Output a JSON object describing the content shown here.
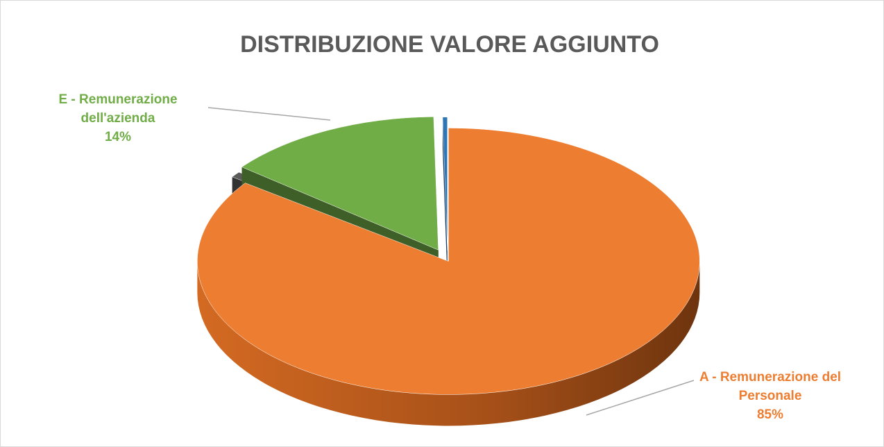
{
  "chart_data": {
    "type": "pie3d",
    "title": "DISTRIBUZIONE VALORE AGGIUNTO",
    "categories": [
      "A - Remunerazione del Personale",
      null,
      "E - Remunerazione dell'azienda",
      null
    ],
    "values": [
      85,
      0.7,
      14,
      0.3
    ],
    "value_labels": [
      "85%",
      null,
      "14%",
      null
    ],
    "colors": [
      "#ed7d31",
      "#5a5a5a",
      "#70ad47",
      "#2e75b6"
    ]
  }
}
